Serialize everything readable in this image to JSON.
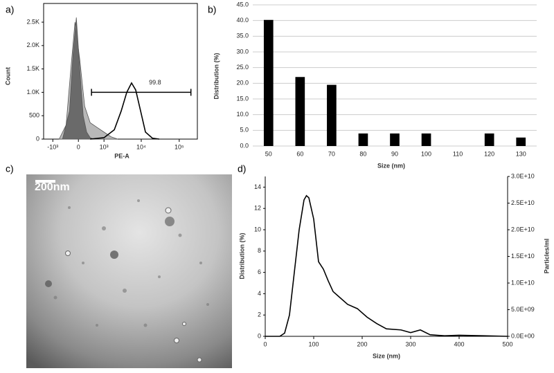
{
  "chart_data": [
    {
      "type": "area",
      "label": "a)",
      "xlabel": "PE-A",
      "ylabel": "Count",
      "xscale": "asinh",
      "frame": true,
      "xlim": [
        -1800,
        300000
      ],
      "ylim": [
        0,
        2900
      ],
      "xticks": [
        {
          "value": -1000,
          "label": "-10³"
        },
        0,
        {
          "value": 1000,
          "label": "10³"
        },
        {
          "value": 10000,
          "label": "10⁴"
        },
        {
          "value": 100000,
          "label": "10⁵"
        }
      ],
      "yticks": [
        0,
        500,
        {
          "value": 1000,
          "label": "1.0K"
        },
        {
          "value": 1500,
          "label": "1.5K"
        },
        {
          "value": 2000,
          "label": "2.0K"
        },
        {
          "value": 2500,
          "label": "2.5K"
        }
      ],
      "series": [
        {
          "color": "#b8b8b8",
          "filled": true,
          "x": [
            -645,
            -363,
            -211,
            -93,
            37,
            173,
            345,
            614,
            1000,
            1570,
            2380
          ],
          "values": [
            0,
            300,
            1500,
            2500,
            1700,
            700,
            350,
            250,
            150,
            50,
            0
          ]
        },
        {
          "color": "#6a6a6a",
          "filled": true,
          "x": [
            -497,
            -251,
            -149,
            -56,
            37,
            131,
            231,
            345,
            470
          ],
          "values": [
            0,
            600,
            1800,
            2600,
            1500,
            500,
            150,
            30,
            0
          ]
        },
        {
          "color": "#000000",
          "filled": false,
          "x": [
            345,
            1000,
            1930,
            2950,
            4150,
            5550,
            7150,
            9620,
            12900,
            19600,
            29800
          ],
          "values": [
            0,
            30,
            200,
            600,
            1000,
            1200,
            1050,
            600,
            150,
            20,
            0
          ]
        }
      ],
      "gate": {
        "label": "99.8",
        "range": [
          390,
          203000
        ],
        "y": 1000
      }
    },
    {
      "type": "bar",
      "label": "b)",
      "xlabel": "Size (nm)",
      "ylabel": "Distribution (%)",
      "grid": true,
      "color": "#000000",
      "categories": [
        "50",
        "60",
        "70",
        "80",
        "90",
        "100",
        "110",
        "120",
        "130"
      ],
      "values": [
        40.2,
        22,
        19.5,
        4,
        4,
        4,
        null,
        4,
        2.7
      ],
      "ylim": [
        0,
        45
      ],
      "yticks": [
        {
          "value": 0,
          "label": "0.0"
        },
        {
          "value": 5,
          "label": "5.0"
        },
        {
          "value": 10,
          "label": "10.0"
        },
        {
          "value": 15,
          "label": "15.0"
        },
        {
          "value": 20,
          "label": "20.0"
        },
        {
          "value": 25,
          "label": "25.0"
        },
        {
          "value": 30,
          "label": "30.0"
        },
        {
          "value": 35,
          "label": "35.0"
        },
        {
          "value": 40,
          "label": "40.0"
        },
        {
          "value": 45,
          "label": "45.0"
        }
      ]
    },
    {
      "type": "line",
      "label": "d)",
      "xlabel": "Size (nm)",
      "ylabel": "Distribution (%)",
      "y2label": "Particles/ml",
      "color": "#000000",
      "x": [
        0,
        30,
        40,
        50,
        60,
        70,
        80,
        85,
        90,
        100,
        110,
        120,
        130,
        140,
        150,
        170,
        190,
        210,
        230,
        250,
        280,
        300,
        320,
        340,
        370,
        400,
        450,
        500
      ],
      "values": [
        0,
        0,
        0.3,
        2,
        6,
        10,
        12.8,
        13.2,
        13,
        11,
        7,
        6.3,
        5.2,
        4.2,
        3.8,
        3,
        2.6,
        1.8,
        1.2,
        0.7,
        0.6,
        0.35,
        0.6,
        0.15,
        0.05,
        0.1,
        0.05,
        0
      ],
      "xlim": [
        0,
        500
      ],
      "xticks": [
        0,
        100,
        200,
        300,
        400,
        500
      ],
      "ylim": [
        0,
        15
      ],
      "yticks": [
        0,
        2,
        4,
        6,
        8,
        10,
        12,
        14
      ],
      "y2lim": [
        0,
        30000000000
      ],
      "y2ticks": [
        {
          "value": 0,
          "label": "0.0E+00"
        },
        {
          "value": 5000000000,
          "label": "5.0E+09"
        },
        {
          "value": 10000000000,
          "label": "1.0E+10"
        },
        {
          "value": 15000000000,
          "label": "1.5E+10"
        },
        {
          "value": 20000000000,
          "label": "2.0E+10"
        },
        {
          "value": 25000000000,
          "label": "2.5E+10"
        },
        {
          "value": 30000000000,
          "label": "3.0E+10"
        }
      ]
    }
  ],
  "image": {
    "label": "c)",
    "scale_bar": "200nm"
  }
}
